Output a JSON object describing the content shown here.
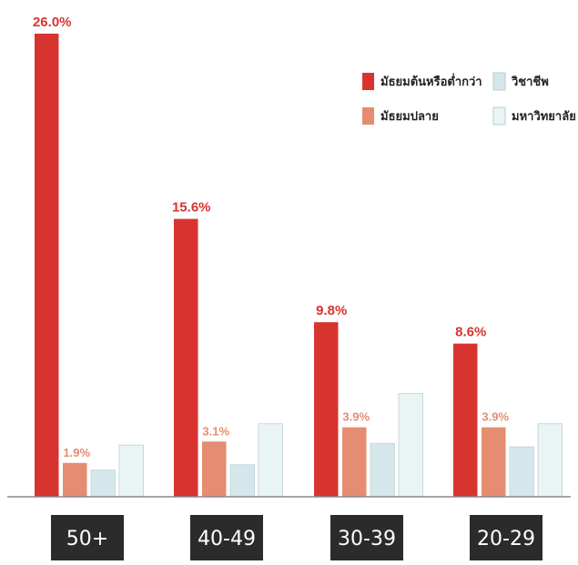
{
  "chart_data": {
    "type": "bar",
    "title": "",
    "categories": [
      "50+",
      "40-49",
      "30-39",
      "20-29"
    ],
    "ylim": [
      0,
      26.5
    ],
    "grid": false,
    "legend_position": "top-right",
    "series": [
      {
        "name": "มัธยมต้นหรือต่ำกว่า",
        "color": "#d8342f",
        "values": [
          26.0,
          15.6,
          9.8,
          8.6
        ],
        "labels": [
          "26.0%",
          "15.6%",
          "9.8%",
          "8.6%"
        ]
      },
      {
        "name": "มัธยมปลาย",
        "color": "#e48d70",
        "values": [
          1.9,
          3.1,
          3.9,
          3.9
        ],
        "labels": [
          "1.9%",
          "3.1%",
          "3.9%",
          "3.9%"
        ]
      },
      {
        "name": "วิชาชีพ",
        "color": "#d4e8ec",
        "values": [
          1.5,
          1.8,
          3.0,
          2.8
        ],
        "labels": [
          "",
          "",
          "",
          ""
        ]
      },
      {
        "name": "มหาวิทยาลัย",
        "color": "#e9f4f5",
        "values": [
          2.9,
          4.1,
          5.8,
          4.1
        ],
        "labels": [
          "",
          "",
          "",
          ""
        ]
      }
    ]
  }
}
